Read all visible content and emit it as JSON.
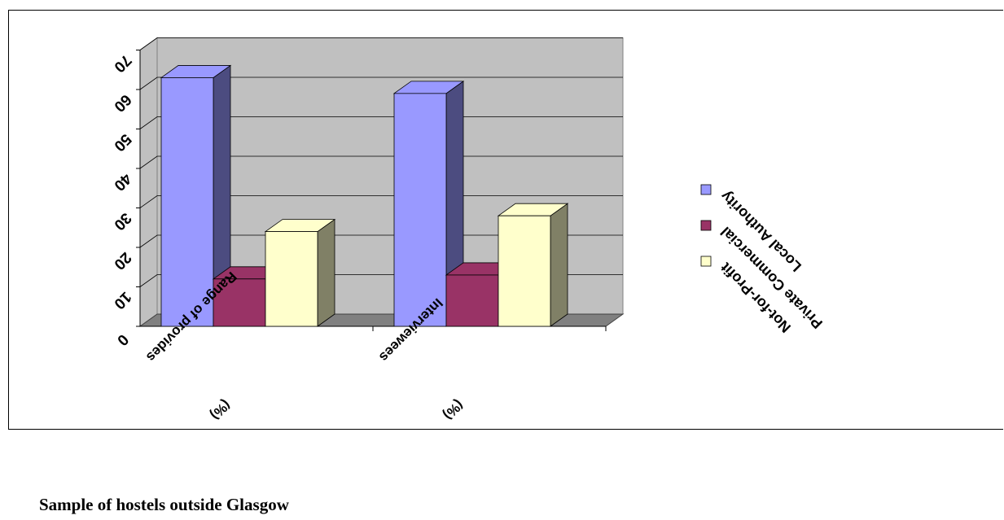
{
  "caption": "Sample of hostels outside Glasgow",
  "colors": {
    "wall": "#c0c0c0",
    "floor": "#808080",
    "gridline": "#000000",
    "series": [
      "#9999ff",
      "#993366",
      "#ffffcc"
    ],
    "series_dark": [
      "#4c4c80",
      "#4d1a33",
      "#808066"
    ]
  },
  "chart_data": {
    "type": "bar",
    "title": "",
    "xlabel": "",
    "ylabel": "",
    "ylim": [
      0,
      70
    ],
    "yticks": [
      "0",
      "10",
      "20",
      "30",
      "40",
      "50",
      "60",
      "70"
    ],
    "categories": [
      "Range of providers (%)",
      "Interviewees (%)"
    ],
    "category_lines": [
      [
        "Range of provides",
        "(%)"
      ],
      [
        "Interviewees",
        "(%)"
      ]
    ],
    "series": [
      {
        "name": "Local Authority",
        "values": [
          63,
          59
        ]
      },
      {
        "name": "Private Commercial",
        "values": [
          12,
          13
        ]
      },
      {
        "name": "Not-for-Profit",
        "values": [
          24,
          28
        ]
      }
    ],
    "grid": true,
    "legend_position": "right"
  }
}
